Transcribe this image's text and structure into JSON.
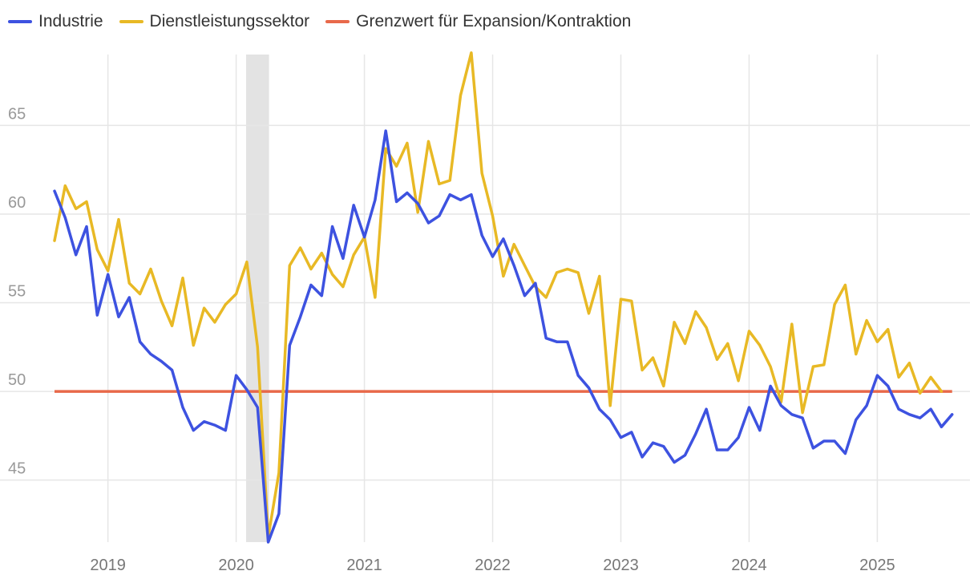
{
  "chart_data": {
    "type": "line",
    "title": "",
    "xlabel": "",
    "ylabel": "",
    "ylim": [
      41.5,
      69
    ],
    "y_ticks": [
      45,
      50,
      55,
      60,
      65
    ],
    "x_ticks": [
      "2019",
      "2020",
      "2021",
      "2022",
      "2023",
      "2024",
      "2025"
    ],
    "x_start": "2018-08",
    "shaded_period": {
      "start": "2020-02",
      "end": "2020-04",
      "color": "#e3e3e3"
    },
    "threshold": {
      "name": "Grenzwert für Expansion/Kontraktion",
      "value": 50,
      "color": "#e8694a"
    },
    "series": [
      {
        "name": "Industrie",
        "color": "#3d52e0",
        "values": [
          61.3,
          59.8,
          57.7,
          59.3,
          54.3,
          56.6,
          54.2,
          55.3,
          52.8,
          52.1,
          51.7,
          51.2,
          49.1,
          47.8,
          48.3,
          48.1,
          47.8,
          50.9,
          50.1,
          49.1,
          41.5,
          43.1,
          52.6,
          54.2,
          56.0,
          55.4,
          59.3,
          57.5,
          60.5,
          58.7,
          60.8,
          64.7,
          60.7,
          61.2,
          60.6,
          59.5,
          59.9,
          61.1,
          60.8,
          61.1,
          58.8,
          57.6,
          58.6,
          57.1,
          55.4,
          56.1,
          53.0,
          52.8,
          52.8,
          50.9,
          50.2,
          49.0,
          48.4,
          47.4,
          47.7,
          46.3,
          47.1,
          46.9,
          46.0,
          46.4,
          47.6,
          49.0,
          46.7,
          46.7,
          47.4,
          49.1,
          47.8,
          50.3,
          49.2,
          48.7,
          48.5,
          46.8,
          47.2,
          47.2,
          46.5,
          48.4,
          49.2,
          50.9,
          50.3,
          49.0,
          48.7,
          48.5,
          49.0,
          48.0,
          48.7
        ]
      },
      {
        "name": "Dienstleistungssektor",
        "color": "#e8b925",
        "values": [
          58.5,
          61.6,
          60.3,
          60.7,
          58.0,
          56.8,
          59.7,
          56.1,
          55.5,
          56.9,
          55.1,
          53.7,
          56.4,
          52.6,
          54.7,
          53.9,
          54.9,
          55.5,
          57.3,
          52.5,
          41.8,
          45.4,
          57.1,
          58.1,
          56.9,
          57.8,
          56.6,
          55.9,
          57.7,
          58.7,
          55.3,
          63.7,
          62.7,
          64.0,
          60.1,
          64.1,
          61.7,
          61.9,
          66.7,
          69.1,
          62.3,
          59.9,
          56.5,
          58.3,
          57.1,
          55.9,
          55.3,
          56.7,
          56.9,
          56.7,
          54.4,
          56.5,
          49.2,
          55.2,
          55.1,
          51.2,
          51.9,
          50.3,
          53.9,
          52.7,
          54.5,
          53.6,
          51.8,
          52.7,
          50.6,
          53.4,
          52.6,
          51.4,
          49.4,
          53.8,
          48.8,
          51.4,
          51.5,
          54.9,
          56.0,
          52.1,
          54.0,
          52.8,
          53.5,
          50.8,
          51.6,
          49.9,
          50.8,
          50.0
        ]
      }
    ]
  }
}
